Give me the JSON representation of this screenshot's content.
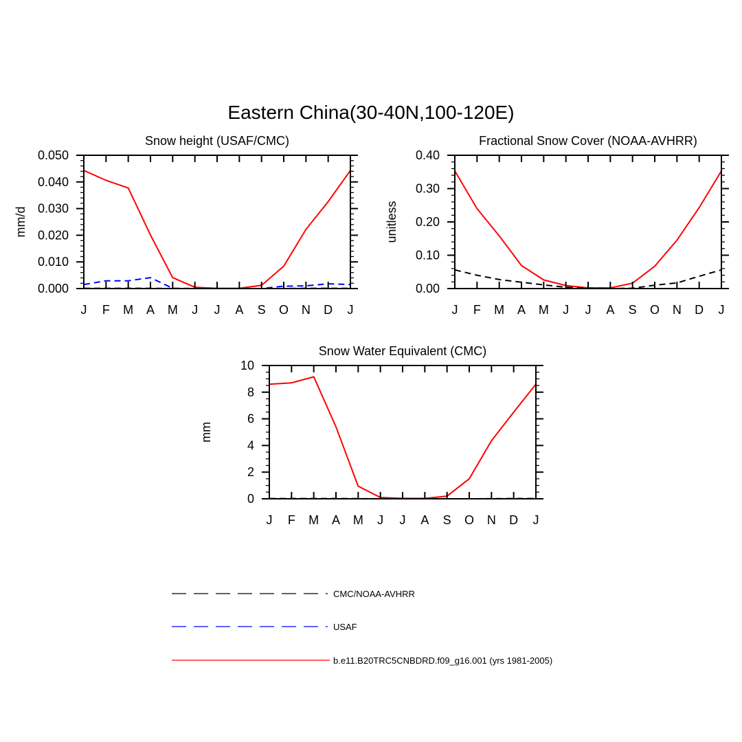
{
  "figure": {
    "title": "Eastern China(30-40N,100-120E)"
  },
  "months": [
    "J",
    "F",
    "M",
    "A",
    "M",
    "J",
    "J",
    "A",
    "S",
    "O",
    "N",
    "D",
    "J"
  ],
  "colors": {
    "model": "#ff0000",
    "usaf": "#0000ff",
    "obs": "#000000"
  },
  "legend": {
    "entries": [
      {
        "label": "CMC/NOAA-AVHRR",
        "series": "obs",
        "style": "long-dash",
        "color": "#000000"
      },
      {
        "label": "USAF",
        "series": "usaf",
        "style": "long-dash",
        "color": "#0000ff"
      },
      {
        "label": "b.e11.B20TRC5CNBDRD.f09_g16.001 (yrs 1981-2005)",
        "series": "model",
        "style": "solid",
        "color": "#ff0000"
      }
    ]
  },
  "chart_data": [
    {
      "type": "line",
      "title": "Snow height (USAF/CMC)",
      "ylabel": "mm/d",
      "xlabel": "",
      "categories": [
        "J",
        "F",
        "M",
        "A",
        "M",
        "J",
        "J",
        "A",
        "S",
        "O",
        "N",
        "D",
        "J"
      ],
      "ylim": [
        0,
        0.05
      ],
      "yticks": [
        0,
        0.01,
        0.02,
        0.03,
        0.04,
        0.05
      ],
      "yticklabels": [
        "0.000",
        "0.010",
        "0.020",
        "0.030",
        "0.040",
        "0.050"
      ],
      "yminor": 0.002,
      "series": [
        {
          "key": "model",
          "values": [
            0.0443,
            0.0406,
            0.0377,
            0.0201,
            0.0041,
            0.0005,
            0.0001,
            0.0001,
            0.0012,
            0.0084,
            0.0222,
            0.0326,
            0.0443
          ],
          "style": "solid",
          "color": "#ff0000"
        },
        {
          "key": "usaf",
          "values": [
            0.0015,
            0.0029,
            0.0029,
            0.0041,
            0.0001,
            0.0,
            0.0,
            0.0,
            0.0,
            0.0009,
            0.001,
            0.0018,
            0.0015
          ],
          "style": "dash",
          "color": "#0000ff"
        },
        {
          "key": "obs",
          "values": [
            0.0001,
            0.0001,
            0.0001,
            0.0001,
            0.0,
            0.0,
            0.0,
            0.0,
            0.0,
            0.0,
            0.0001,
            0.0001,
            0.0001
          ],
          "style": "dash",
          "color": "#000000"
        }
      ]
    },
    {
      "type": "line",
      "title": "Fractional Snow Cover (NOAA-AVHRR)",
      "ylabel": "unitless",
      "xlabel": "",
      "categories": [
        "J",
        "F",
        "M",
        "A",
        "M",
        "J",
        "J",
        "A",
        "S",
        "O",
        "N",
        "D",
        "J"
      ],
      "ylim": [
        0,
        0.4
      ],
      "yticks": [
        0,
        0.1,
        0.2,
        0.3,
        0.4
      ],
      "yticklabels": [
        "0.00",
        "0.10",
        "0.20",
        "0.30",
        "0.40"
      ],
      "yminor": 0.02,
      "series": [
        {
          "key": "model",
          "values": [
            0.353,
            0.24,
            0.158,
            0.069,
            0.026,
            0.009,
            0.002,
            0.002,
            0.016,
            0.067,
            0.145,
            0.243,
            0.353
          ],
          "style": "solid",
          "color": "#ff0000"
        },
        {
          "key": "obs",
          "values": [
            0.056,
            0.04,
            0.027,
            0.019,
            0.011,
            0.004,
            0.001,
            0.0,
            0.001,
            0.01,
            0.017,
            0.037,
            0.056
          ],
          "style": "dash",
          "color": "#000000"
        }
      ]
    },
    {
      "type": "line",
      "title": "Snow Water Equivalent (CMC)",
      "ylabel": "mm",
      "xlabel": "",
      "categories": [
        "J",
        "F",
        "M",
        "A",
        "M",
        "J",
        "J",
        "A",
        "S",
        "O",
        "N",
        "D",
        "J"
      ],
      "ylim": [
        0,
        10
      ],
      "yticks": [
        0,
        2,
        4,
        6,
        8,
        10
      ],
      "yticklabels": [
        "0",
        "2",
        "4",
        "6",
        "8",
        "10"
      ],
      "yminor": 0.5,
      "series": [
        {
          "key": "model",
          "values": [
            8.6,
            8.7,
            9.15,
            5.4,
            0.95,
            0.1,
            0.03,
            0.03,
            0.2,
            1.5,
            4.35,
            6.5,
            8.6
          ],
          "style": "solid",
          "color": "#ff0000"
        },
        {
          "key": "obs",
          "values": [
            0.02,
            0.02,
            0.02,
            0.02,
            0.01,
            0.0,
            0.0,
            0.0,
            0.0,
            0.0,
            0.01,
            0.02,
            0.02
          ],
          "style": "dash",
          "color": "#000000"
        }
      ]
    }
  ]
}
